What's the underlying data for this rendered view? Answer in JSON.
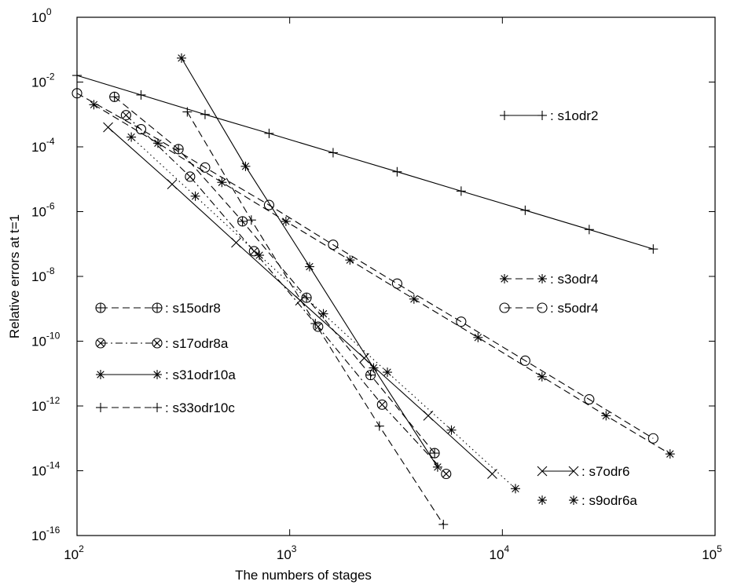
{
  "chart_data": {
    "type": "line",
    "xlabel": "The numbers of stages",
    "ylabel": "Relative errors at t=1",
    "x_scale": "log",
    "y_scale": "log",
    "xlim": [
      100,
      100000
    ],
    "ylim": [
      1e-16,
      1
    ],
    "x_ticks": [
      {
        "value": 100,
        "base": "10",
        "exp": "2"
      },
      {
        "value": 1000,
        "base": "10",
        "exp": "3"
      },
      {
        "value": 10000,
        "base": "10",
        "exp": "4"
      },
      {
        "value": 100000,
        "base": "10",
        "exp": "5"
      }
    ],
    "y_ticks": [
      {
        "value": 1,
        "base": "10",
        "exp": "0"
      },
      {
        "value": 0.01,
        "base": "10",
        "exp": "-2"
      },
      {
        "value": 0.0001,
        "base": "10",
        "exp": "-4"
      },
      {
        "value": 1e-06,
        "base": "10",
        "exp": "-6"
      },
      {
        "value": 1e-08,
        "base": "10",
        "exp": "-8"
      },
      {
        "value": 1e-10,
        "base": "10",
        "exp": "-10"
      },
      {
        "value": 1e-12,
        "base": "10",
        "exp": "-12"
      },
      {
        "value": 1e-14,
        "base": "10",
        "exp": "-14"
      },
      {
        "value": 1e-16,
        "base": "10",
        "exp": "-16"
      }
    ],
    "grid": false,
    "legend_position": "inside",
    "series": [
      {
        "name": "s1odr2",
        "line": "solid",
        "marker": "plus",
        "x": [
          100,
          200,
          400,
          800,
          1600,
          3200,
          6400,
          12800,
          25600,
          51200
        ],
        "y": [
          0.016,
          0.004,
          0.001,
          0.00026,
          6.6e-05,
          1.7e-05,
          4.3e-06,
          1.1e-06,
          2.8e-07,
          7e-08
        ]
      },
      {
        "name": "s3odr4",
        "line": "dashed",
        "marker": "star",
        "x": [
          120,
          240,
          480,
          960,
          1920,
          3840,
          7680,
          15360,
          30720,
          61440
        ],
        "y": [
          0.002,
          0.00013,
          8e-06,
          5e-07,
          3.2e-08,
          2e-09,
          1.3e-10,
          8e-12,
          5e-13,
          3.3e-14
        ]
      },
      {
        "name": "s5odr4",
        "line": "dashed",
        "marker": "circle",
        "x": [
          100,
          200,
          400,
          800,
          1600,
          3200,
          6400,
          12800,
          25600,
          51200
        ],
        "y": [
          0.0045,
          0.00035,
          2.3e-05,
          1.6e-06,
          9.5e-08,
          6e-09,
          4e-10,
          2.5e-11,
          1.6e-12,
          1e-13
        ]
      },
      {
        "name": "s7odr6",
        "line": "solid",
        "marker": "x",
        "x": [
          140,
          280,
          560,
          1120,
          2240,
          4480,
          8960
        ],
        "y": [
          0.0004,
          7e-06,
          1.1e-07,
          1.8e-09,
          3e-11,
          5e-13,
          8e-15
        ]
      },
      {
        "name": "s9odr6a",
        "line": "dotted",
        "marker": "star",
        "x": [
          180,
          360,
          720,
          1440,
          2880,
          5760,
          11520
        ],
        "y": [
          0.0002,
          3e-06,
          4.5e-08,
          7e-10,
          1.1e-11,
          1.8e-13,
          2.8e-15
        ]
      },
      {
        "name": "s15odr8",
        "line": "dashed",
        "marker": "circle-plus",
        "x": [
          150,
          300,
          600,
          1200,
          2400,
          4800
        ],
        "y": [
          0.0035,
          8.5e-05,
          5e-07,
          2.2e-09,
          9e-12,
          3.5e-14
        ]
      },
      {
        "name": "s17odr8a",
        "line": "dashdot",
        "marker": "circle-x",
        "x": [
          170,
          340,
          680,
          1360,
          2720,
          5440
        ],
        "y": [
          0.00095,
          1.2e-05,
          6e-08,
          2.8e-10,
          1.1e-12,
          8e-15
        ]
      },
      {
        "name": "s31odr10a",
        "line": "solid",
        "marker": "star",
        "x": [
          310,
          620,
          1240,
          2480,
          4960
        ],
        "y": [
          0.055,
          2.5e-05,
          2e-08,
          1.5e-11,
          1.3e-14
        ]
      },
      {
        "name": "s33odr10c",
        "line": "dashed",
        "marker": "plus",
        "x": [
          330,
          660,
          1320,
          2640,
          5280
        ],
        "y": [
          0.0012,
          5.5e-07,
          3.5e-10,
          2.4e-13,
          2.2e-16
        ]
      }
    ]
  }
}
